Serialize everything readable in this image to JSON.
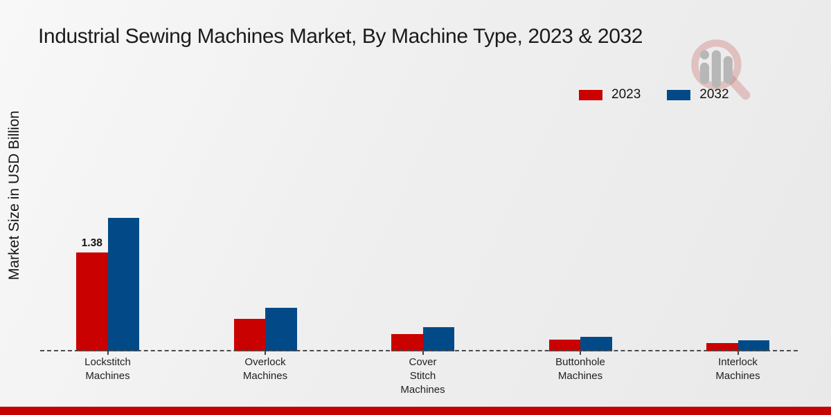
{
  "title": "Industrial Sewing Machines Market, By Machine Type, 2023 & 2032",
  "y_axis_label": "Market Size in USD Billion",
  "legend": {
    "position": "top-right",
    "items": [
      {
        "label": "2023",
        "color": "#c90101"
      },
      {
        "label": "2032",
        "color": "#014a87"
      }
    ]
  },
  "watermark": {
    "icon": "magnifier-bar-chart-logo-icon"
  },
  "footer": {
    "accent_bar_color": "#c60101"
  },
  "chart_data": {
    "type": "bar",
    "title": "Industrial Sewing Machines Market, By Machine Type, 2023 & 2032",
    "ylabel": "Market Size in USD Billion",
    "xlabel": "",
    "categories": [
      "Lockstitch Machines",
      "Overlock Machines",
      "Cover Stitch Machines",
      "Buttonhole Machines",
      "Interlock Machines"
    ],
    "category_label_lines": [
      [
        "Lockstitch",
        "Machines"
      ],
      [
        "Overlock",
        "Machines"
      ],
      [
        "Cover",
        "Stitch",
        "Machines"
      ],
      [
        "Buttonhole",
        "Machines"
      ],
      [
        "Interlock",
        "Machines"
      ]
    ],
    "series": [
      {
        "name": "2023",
        "color": "#c90101",
        "values": [
          1.38,
          0.45,
          0.24,
          0.16,
          0.12
        ]
      },
      {
        "name": "2032",
        "color": "#014a87",
        "values": [
          1.86,
          0.61,
          0.34,
          0.2,
          0.15
        ]
      }
    ],
    "bar_value_labels": [
      {
        "series": "2023",
        "category": "Lockstitch Machines",
        "text": "1.38"
      }
    ],
    "ylim": [
      0,
      2.0
    ],
    "grid": false,
    "y_ticks_visible": false,
    "baseline_style": "dashed",
    "legend_position": "top-right"
  }
}
